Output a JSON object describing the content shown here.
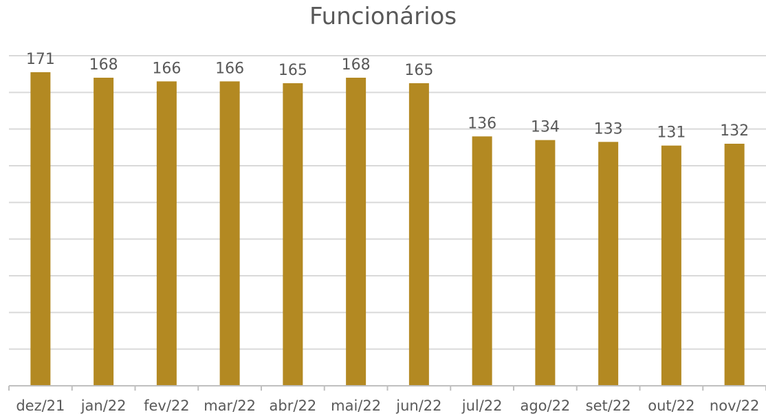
{
  "chart_data": {
    "type": "bar",
    "title": "Funcionários",
    "categories": [
      "dez/21",
      "jan/22",
      "fev/22",
      "mar/22",
      "abr/22",
      "mai/22",
      "jun/22",
      "jul/22",
      "ago/22",
      "set/22",
      "out/22",
      "nov/22"
    ],
    "values": [
      171,
      168,
      166,
      166,
      165,
      168,
      165,
      136,
      134,
      133,
      131,
      132
    ],
    "xlabel": "",
    "ylabel": "",
    "ylim": [
      0,
      180
    ],
    "grid": true,
    "legend": "none",
    "colors": {
      "bar": "#B38922",
      "grid": "#D9D9D9",
      "axis": "#BFBFBF",
      "text": "#595959"
    }
  }
}
